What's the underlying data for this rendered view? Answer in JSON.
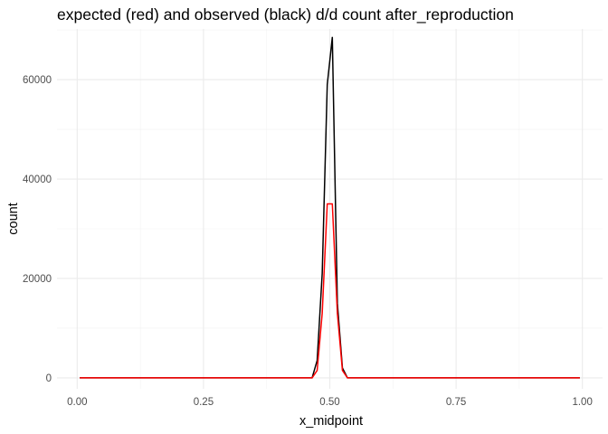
{
  "chart_data": {
    "type": "line",
    "title": "expected (red) and observed (black) d/d count after_reproduction",
    "xlabel": "x_midpoint",
    "ylabel": "count",
    "xlim": [
      -0.04,
      1.04
    ],
    "ylim": [
      -2200,
      70200
    ],
    "xticks": [
      0.0,
      0.25,
      0.5,
      0.75,
      1.0
    ],
    "xtick_labels": [
      "0.00",
      "0.25",
      "0.50",
      "0.75",
      "1.00"
    ],
    "yticks": [
      0,
      20000,
      40000,
      60000
    ],
    "ytick_labels": [
      "0",
      "20000",
      "40000",
      "60000"
    ],
    "grid": true,
    "legend": "none",
    "series": [
      {
        "color": "#000000",
        "x": [
          0.005,
          0.465,
          0.475,
          0.485,
          0.495,
          0.505,
          0.515,
          0.525,
          0.535,
          0.545,
          0.995
        ],
        "y": [
          0,
          0,
          3500,
          21000,
          59000,
          68500,
          15000,
          2000,
          0,
          0,
          0
        ]
      },
      {
        "color": "#ff0000",
        "x": [
          0.005,
          0.465,
          0.475,
          0.485,
          0.495,
          0.505,
          0.515,
          0.525,
          0.535,
          0.545,
          0.995
        ],
        "y": [
          0,
          0,
          1500,
          13000,
          35000,
          35000,
          13000,
          1500,
          0,
          0,
          0
        ]
      }
    ]
  }
}
